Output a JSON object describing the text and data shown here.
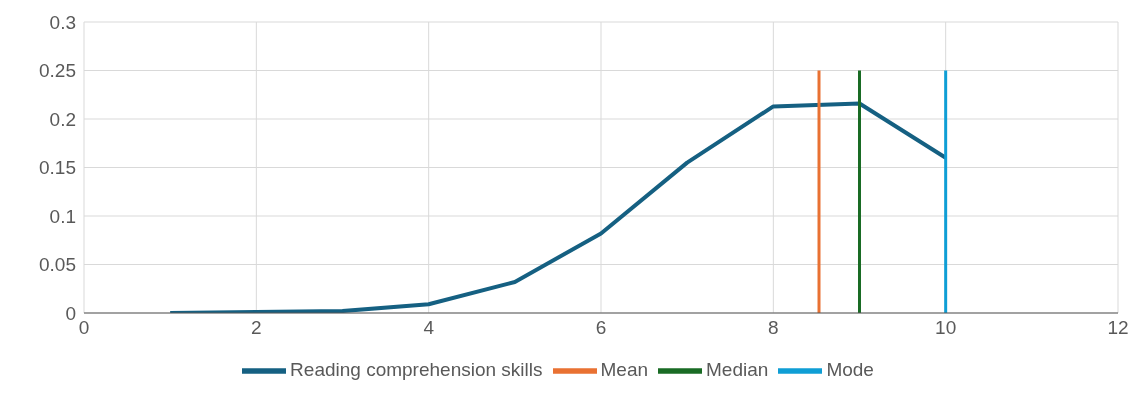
{
  "chart_data": {
    "type": "line",
    "xlim": [
      0,
      12
    ],
    "xticks": [
      0,
      2,
      4,
      6,
      8,
      10,
      12
    ],
    "ylim": [
      0,
      0.3
    ],
    "yticks": [
      0,
      0.05,
      0.1,
      0.15,
      0.2,
      0.25,
      0.3
    ],
    "grid": true,
    "legend": "bottom",
    "marker": "none",
    "line_style": "solid",
    "series": [
      {
        "name": "Reading comprehension skills",
        "color": "#156082",
        "x": [
          1,
          2,
          3,
          4,
          5,
          6,
          7,
          8,
          9,
          10
        ],
        "values": [
          0,
          0.001,
          0.002,
          0.009,
          0.032,
          0.082,
          0.155,
          0.213,
          0.216,
          0.16
        ]
      },
      {
        "name": "Mean",
        "color": "#e97132",
        "x": [
          8.53,
          8.53
        ],
        "values": [
          0,
          0.25
        ]
      },
      {
        "name": "Median",
        "color": "#196b24",
        "x": [
          9,
          9
        ],
        "values": [
          0,
          0.25
        ]
      },
      {
        "name": "Mode",
        "color": "#0f9ed5",
        "x": [
          10,
          10
        ],
        "values": [
          0,
          0.25
        ]
      }
    ]
  }
}
